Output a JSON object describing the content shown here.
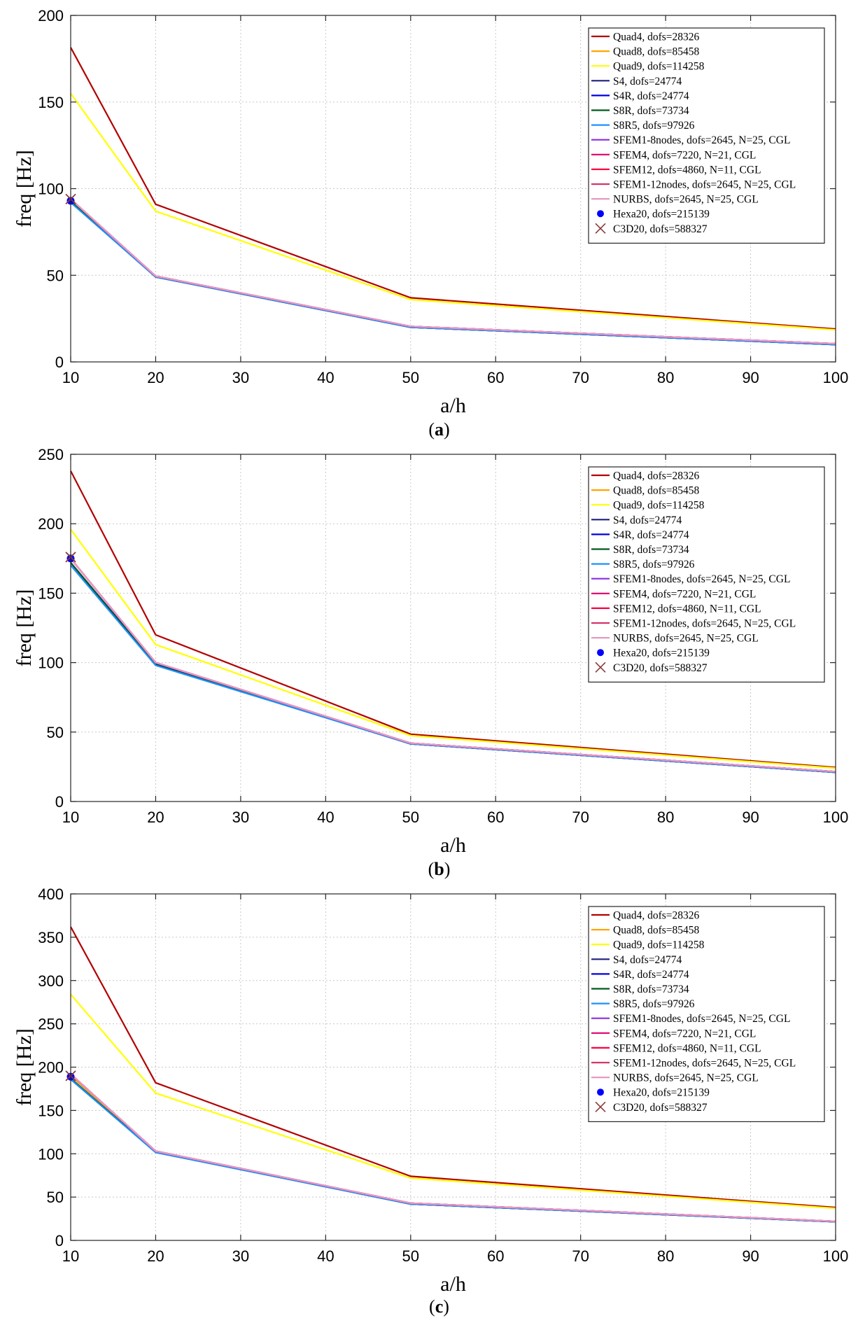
{
  "figure": {
    "panels": [
      "(a)",
      "(b)",
      "(c)"
    ]
  },
  "chart_data": [
    {
      "type": "line",
      "panel_label": "(a)",
      "caption_letter": "a",
      "xlabel": "a/h",
      "ylabel": "freq [Hz]",
      "xlim": [
        10,
        100
      ],
      "ylim": [
        0,
        200
      ],
      "x_ticks": [
        10,
        20,
        30,
        40,
        50,
        60,
        70,
        80,
        90,
        100
      ],
      "y_ticks": [
        0,
        50,
        100,
        150,
        200
      ],
      "grid": true,
      "legend_position": "top-right",
      "x": [
        10,
        20,
        50,
        100
      ],
      "series": [
        {
          "name": "Quad4, dofs=28326",
          "color": "#b20000",
          "values": [
            181.5,
            91,
            37,
            19
          ]
        },
        {
          "name": "Quad8, dofs=85458",
          "color": "#ffa500",
          "values": [
            93.5,
            49.5,
            20.5,
            10.5
          ]
        },
        {
          "name": "Quad9, dofs=114258",
          "color": "#ffff00",
          "values": [
            155,
            87,
            36,
            18.5
          ]
        },
        {
          "name": "S4, dofs=24774",
          "color": "#1f1f7a",
          "values": [
            92.5,
            49,
            20,
            10
          ]
        },
        {
          "name": "S4R, dofs=24774",
          "color": "#0000dd",
          "values": [
            92.5,
            49,
            20,
            10
          ]
        },
        {
          "name": "S8R, dofs=73734",
          "color": "#005a1e",
          "values": [
            93,
            49,
            20,
            10
          ]
        },
        {
          "name": "S8R5, dofs=97926",
          "color": "#1e90ff",
          "values": [
            92,
            49,
            20,
            10
          ]
        },
        {
          "name": "SFEM1-8nodes, dofs=2645, N=25, CGL",
          "color": "#8a2be2",
          "values": [
            94,
            49.5,
            20.5,
            10.5
          ]
        },
        {
          "name": "SFEM4, dofs=7220, N=21, CGL",
          "color": "#e0006a",
          "values": [
            94,
            49.5,
            20.5,
            10.5
          ]
        },
        {
          "name": "SFEM12, dofs=4860, N=11, CGL",
          "color": "#ff0040",
          "values": [
            94,
            49.5,
            20.5,
            10.5
          ]
        },
        {
          "name": "SFEM1-12nodes, dofs=2645, N=25, CGL",
          "color": "#d6336c",
          "values": [
            94,
            49.5,
            20.5,
            10.5
          ]
        },
        {
          "name": "NURBS, dofs=2645, N=25, CGL",
          "color": "#e59ac5",
          "values": [
            94,
            49.5,
            20.5,
            10.5
          ]
        }
      ],
      "markers": [
        {
          "name": "Hexa20, dofs=215139",
          "color": "#0000ff",
          "symbol": "dot",
          "x": 10,
          "y": 93
        },
        {
          "name": "C3D20, dofs=588327",
          "color": "#8b3a3a",
          "symbol": "cross",
          "x": 10,
          "y": 94
        }
      ]
    },
    {
      "type": "line",
      "panel_label": "(b)",
      "caption_letter": "b",
      "xlabel": "a/h",
      "ylabel": "freq [Hz]",
      "xlim": [
        10,
        100
      ],
      "ylim": [
        0,
        250
      ],
      "x_ticks": [
        10,
        20,
        30,
        40,
        50,
        60,
        70,
        80,
        90,
        100
      ],
      "y_ticks": [
        0,
        50,
        100,
        150,
        200,
        250
      ],
      "grid": true,
      "legend_position": "top-right",
      "x": [
        10,
        20,
        50,
        100
      ],
      "series": [
        {
          "name": "Quad4, dofs=28326",
          "color": "#b20000",
          "values": [
            238,
            120,
            48.5,
            24.5
          ]
        },
        {
          "name": "Quad8, dofs=85458",
          "color": "#ffa500",
          "values": [
            175,
            100,
            42,
            21.5
          ]
        },
        {
          "name": "Quad9, dofs=114258",
          "color": "#ffff00",
          "values": [
            196,
            113,
            47.5,
            24
          ]
        },
        {
          "name": "S4, dofs=24774",
          "color": "#1f1f7a",
          "values": [
            172,
            99,
            41.5,
            21
          ]
        },
        {
          "name": "S4R, dofs=24774",
          "color": "#0000dd",
          "values": [
            172,
            99,
            41.5,
            21
          ]
        },
        {
          "name": "S8R, dofs=73734",
          "color": "#005a1e",
          "values": [
            172,
            98.5,
            41.5,
            21
          ]
        },
        {
          "name": "S8R5, dofs=97926",
          "color": "#1e90ff",
          "values": [
            170,
            98,
            41.5,
            21
          ]
        },
        {
          "name": "SFEM1-8nodes, dofs=2645, N=25, CGL",
          "color": "#8a2be2",
          "values": [
            175,
            100,
            42,
            21.5
          ]
        },
        {
          "name": "SFEM4, dofs=7220, N=21, CGL",
          "color": "#e0006a",
          "values": [
            175,
            100,
            42,
            21.5
          ]
        },
        {
          "name": "SFEM12, dofs=4860, N=11, CGL",
          "color": "#ff0040",
          "values": [
            175,
            100,
            42,
            21.5
          ]
        },
        {
          "name": "SFEM1-12nodes, dofs=2645, N=25, CGL",
          "color": "#d6336c",
          "values": [
            175,
            100,
            42,
            21.5
          ]
        },
        {
          "name": "NURBS, dofs=2645, N=25, CGL",
          "color": "#e59ac5",
          "values": [
            175,
            100,
            42,
            21.5
          ]
        }
      ],
      "markers": [
        {
          "name": "Hexa20, dofs=215139",
          "color": "#0000ff",
          "symbol": "dot",
          "x": 10,
          "y": 175
        },
        {
          "name": "C3D20, dofs=588327",
          "color": "#8b3a3a",
          "symbol": "cross",
          "x": 10,
          "y": 176
        }
      ]
    },
    {
      "type": "line",
      "panel_label": "(c)",
      "caption_letter": "c",
      "xlabel": "a/h",
      "ylabel": "freq [Hz]",
      "xlim": [
        10,
        100
      ],
      "ylim": [
        0,
        400
      ],
      "x_ticks": [
        10,
        20,
        30,
        40,
        50,
        60,
        70,
        80,
        90,
        100
      ],
      "y_ticks": [
        0,
        50,
        100,
        150,
        200,
        250,
        300,
        350,
        400
      ],
      "grid": true,
      "legend_position": "top-right",
      "x": [
        10,
        20,
        50,
        100
      ],
      "series": [
        {
          "name": "Quad4, dofs=28326",
          "color": "#b20000",
          "values": [
            362,
            182,
            74,
            38
          ]
        },
        {
          "name": "Quad8, dofs=85458",
          "color": "#ffa500",
          "values": [
            190,
            103,
            43,
            22
          ]
        },
        {
          "name": "Quad9, dofs=114258",
          "color": "#ffff00",
          "values": [
            284,
            170,
            72,
            37
          ]
        },
        {
          "name": "S4, dofs=24774",
          "color": "#1f1f7a",
          "values": [
            186,
            102,
            42,
            21.5
          ]
        },
        {
          "name": "S4R, dofs=24774",
          "color": "#0000dd",
          "values": [
            186,
            102,
            42,
            21.5
          ]
        },
        {
          "name": "S8R, dofs=73734",
          "color": "#005a1e",
          "values": [
            187,
            102,
            42,
            21.5
          ]
        },
        {
          "name": "S8R5, dofs=97926",
          "color": "#1e90ff",
          "values": [
            186,
            101.5,
            42,
            21.5
          ]
        },
        {
          "name": "SFEM1-8nodes, dofs=2645, N=25, CGL",
          "color": "#8a2be2",
          "values": [
            192,
            103,
            43,
            22
          ]
        },
        {
          "name": "SFEM4, dofs=7220, N=21, CGL",
          "color": "#e0006a",
          "values": [
            192,
            103,
            43,
            22
          ]
        },
        {
          "name": "SFEM12, dofs=4860, N=11, CGL",
          "color": "#ff0040",
          "values": [
            192,
            103,
            43,
            22
          ]
        },
        {
          "name": "SFEM1-12nodes, dofs=2645, N=25, CGL",
          "color": "#d6336c",
          "values": [
            192,
            103,
            43,
            22
          ]
        },
        {
          "name": "NURBS, dofs=2645, N=25, CGL",
          "color": "#e59ac5",
          "values": [
            192,
            103,
            43,
            22
          ]
        }
      ],
      "markers": [
        {
          "name": "Hexa20, dofs=215139",
          "color": "#0000ff",
          "symbol": "dot",
          "x": 10,
          "y": 189
        },
        {
          "name": "C3D20, dofs=588327",
          "color": "#8b3a3a",
          "symbol": "cross",
          "x": 10,
          "y": 190
        }
      ]
    }
  ]
}
